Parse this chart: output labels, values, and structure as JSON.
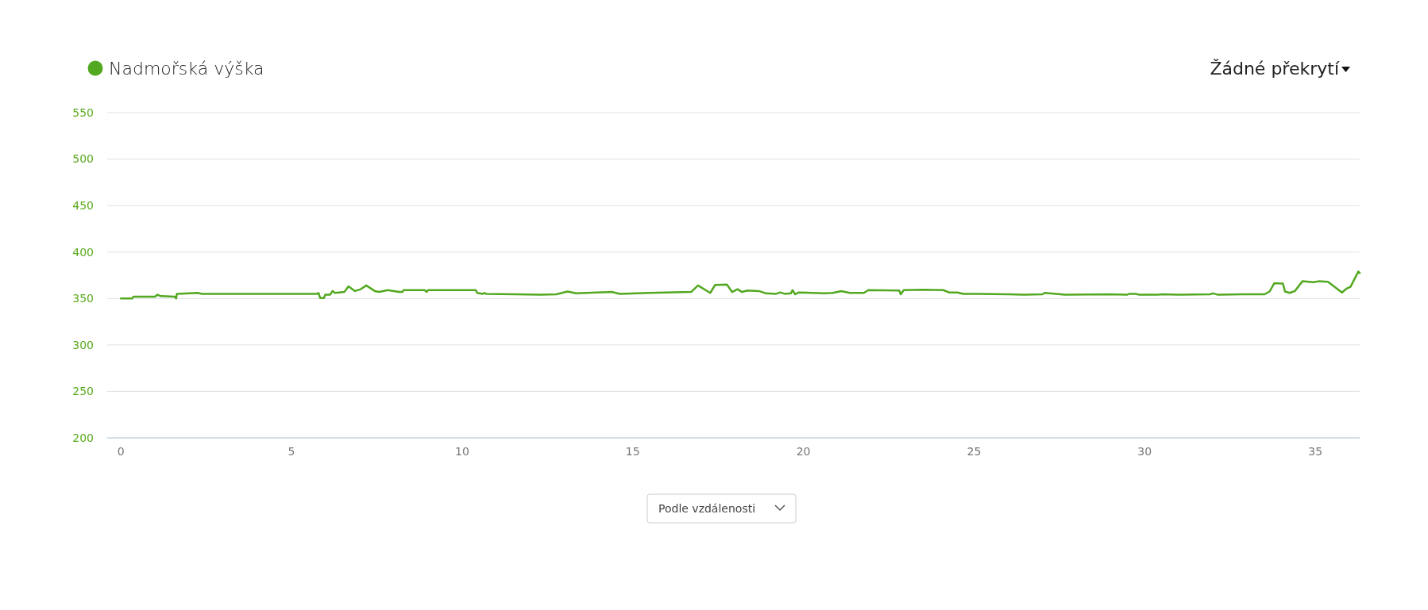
{
  "chart_data": {
    "type": "line",
    "legend": "top left",
    "grid": "y",
    "marker": "none",
    "line_style": "solid",
    "xlim": [
      -0.4,
      36.3
    ],
    "xticks": [
      0,
      5,
      10,
      15,
      20,
      25,
      30,
      35
    ],
    "ylim": [
      200,
      550
    ],
    "yticks": [
      200,
      250,
      300,
      350,
      400,
      450,
      500,
      550
    ],
    "annotations": [
      "Žádné překrytí",
      "Podle vzdálenosti"
    ],
    "series": [
      {
        "name": "Nadmořská výška",
        "color": "#52a820",
        "x": [
          0,
          0.33,
          0.37,
          1.0,
          1.07,
          1.17,
          1.58,
          1.62,
          1.64,
          2.25,
          2.38,
          3.5,
          4.66,
          5.74,
          5.79,
          5.84,
          5.95,
          5.99,
          6.13,
          6.2,
          6.28,
          6.55,
          6.67,
          6.86,
          7.03,
          7.19,
          7.44,
          7.57,
          7.82,
          8.15,
          8.25,
          8.28,
          8.9,
          8.96,
          9.0,
          10.4,
          10.44,
          10.6,
          10.65,
          10.7,
          11.57,
          12.3,
          12.76,
          13.09,
          13.34,
          14.38,
          14.63,
          15.46,
          16.71,
          16.91,
          17.27,
          17.41,
          17.76,
          17.91,
          18.07,
          18.2,
          18.36,
          18.7,
          18.9,
          19.2,
          19.32,
          19.45,
          19.63,
          19.68,
          19.76,
          19.86,
          20.61,
          20.86,
          21.11,
          21.36,
          21.77,
          21.9,
          22.81,
          22.85,
          22.94,
          23.52,
          24.1,
          24.27,
          24.52,
          24.68,
          25.1,
          26.03,
          26.45,
          27.0,
          27.07,
          27.54,
          27.66,
          28.97,
          29.48,
          29.55,
          29.75,
          29.84,
          30.37,
          30.52,
          30.99,
          31.92,
          32.0,
          32.15,
          32.85,
          33.51,
          33.66,
          33.8,
          34.05,
          34.11,
          34.25,
          34.4,
          34.62,
          34.94,
          35.1,
          35.37,
          35.78,
          35.91,
          36.03,
          36.26,
          36.3
        ],
        "values": [
          350,
          350,
          352,
          352,
          354,
          352.5,
          352,
          350,
          355,
          356,
          355,
          355,
          355,
          355,
          356,
          350.5,
          350.5,
          354,
          354,
          358,
          356,
          357,
          363,
          358,
          360,
          364,
          358,
          357,
          359,
          357,
          357,
          359,
          359,
          357,
          359,
          359,
          356,
          355,
          356,
          355,
          354.5,
          354,
          354.5,
          357.5,
          355.5,
          357,
          355,
          356,
          357,
          364,
          356,
          364.5,
          365,
          357,
          360,
          357,
          358.5,
          358,
          355.5,
          355,
          356.5,
          355,
          355.5,
          359,
          354.5,
          356.5,
          355.5,
          356,
          358,
          356,
          356,
          359,
          358.5,
          354.5,
          359,
          359.5,
          359,
          356.5,
          356.5,
          355,
          355,
          354.5,
          354,
          354.5,
          356,
          354.5,
          354,
          354.5,
          354,
          355,
          355,
          354,
          354,
          354.5,
          354,
          354.5,
          355.5,
          354,
          354.5,
          354.5,
          357.5,
          366.5,
          366,
          357.5,
          356,
          358,
          368.5,
          367.5,
          368.5,
          368,
          356.5,
          360.5,
          362.5,
          379,
          377.5
        ]
      }
    ]
  }
}
